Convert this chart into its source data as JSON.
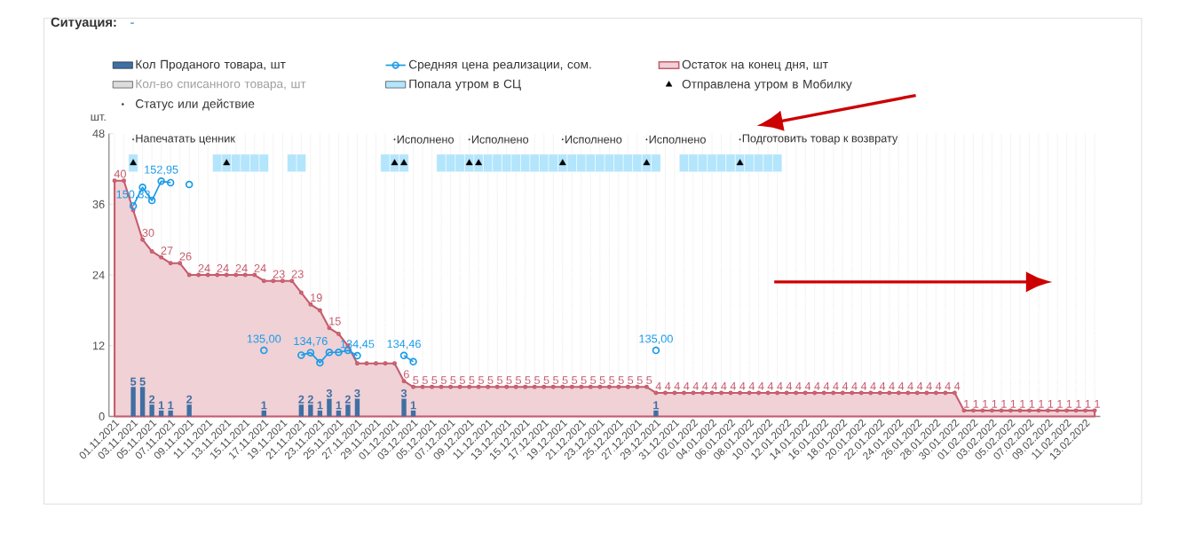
{
  "chart_data": {
    "type": "bar",
    "title": "Ситуация:",
    "subtitle": "-",
    "ylabel": "шт.",
    "categories": [
      "01.11.2021",
      null,
      "03.11.2021",
      null,
      "05.11.2021",
      null,
      "07.11.2021",
      null,
      "09.11.2021",
      null,
      "11.11.2021",
      null,
      "13.11.2021",
      null,
      "15.11.2021",
      null,
      "17.11.2021",
      null,
      "19.11.2021",
      null,
      "21.11.2021",
      null,
      "23.11.2021",
      null,
      "25.11.2021",
      null,
      "27.11.2021",
      null,
      "29.11.2021",
      null,
      "01.12.2021",
      null,
      "03.12.2021",
      null,
      "05.12.2021",
      null,
      "07.12.2021",
      null,
      "09.12.2021",
      null,
      "11.12.2021",
      null,
      "13.12.2021",
      null,
      "15.12.2021",
      null,
      "17.12.2021",
      null,
      "19.12.2021",
      null,
      "21.12.2021",
      null,
      "23.12.2021",
      null,
      "25.12.2021",
      null,
      "27.12.2021",
      null,
      "29.12.2021",
      null,
      "31.12.2021",
      null,
      "02.01.2022",
      null,
      "04.01.2022",
      null,
      "06.01.2022",
      null,
      "08.01.2022",
      null,
      "10.01.2022",
      null,
      "12.01.2022",
      null,
      "14.01.2022",
      null,
      "16.01.2022",
      null,
      "18.01.2022",
      null,
      "20.01.2022",
      null,
      "22.01.2022",
      null,
      "24.01.2022",
      null,
      "26.01.2022",
      null,
      "28.01.2022",
      null,
      "30.01.2022",
      null,
      "01.02.2022",
      null,
      "03.02.2022",
      null,
      "05.02.2022",
      null,
      "07.02.2022",
      null,
      "09.02.2022",
      null,
      "11.02.2022",
      null,
      "13.02.2022",
      null
    ],
    "ylim": [
      0,
      48
    ],
    "yticks": [
      0,
      12,
      24,
      36,
      48
    ],
    "y2lim": [
      128,
      158
    ],
    "grid": "x",
    "legend": "top left",
    "series": [
      {
        "name": "Кол Проданого товара, шт",
        "color": "#3f6fa3",
        "data_labels": true,
        "values": [
          null,
          null,
          5,
          5,
          2,
          1,
          1,
          null,
          2,
          null,
          null,
          null,
          null,
          null,
          null,
          null,
          1,
          null,
          null,
          null,
          2,
          2,
          1,
          3,
          1,
          2,
          3,
          null,
          null,
          null,
          null,
          3,
          1,
          null,
          null,
          null,
          null,
          null,
          null,
          null,
          null,
          null,
          null,
          null,
          null,
          null,
          null,
          null,
          null,
          null,
          null,
          null,
          null,
          null,
          null,
          null,
          null,
          null,
          1,
          null,
          null,
          null,
          null,
          null,
          null,
          null,
          null,
          null,
          null,
          null,
          null,
          null,
          null,
          null,
          null,
          null,
          null,
          null,
          null,
          null,
          null,
          null,
          null,
          null,
          null,
          null,
          null,
          null,
          null,
          null,
          null,
          null,
          null,
          null,
          null,
          null,
          null,
          null,
          null,
          null,
          null,
          null,
          null,
          null,
          null,
          null
        ]
      },
      {
        "name": "Средняя цена реализации, сом.",
        "type": "line",
        "axis": "y2",
        "marker": "circle",
        "color": "#1a9be8",
        "values": [
          null,
          null,
          150.33,
          152.3,
          150.9,
          152.95,
          152.8,
          null,
          152.6,
          null,
          null,
          null,
          null,
          null,
          null,
          null,
          135.0,
          null,
          null,
          null,
          134.5,
          134.76,
          133.7,
          134.8,
          134.8,
          135.0,
          134.45,
          null,
          null,
          null,
          null,
          134.46,
          133.8,
          null,
          null,
          null,
          null,
          null,
          null,
          null,
          null,
          null,
          null,
          null,
          null,
          null,
          null,
          null,
          null,
          null,
          null,
          null,
          null,
          null,
          null,
          null,
          null,
          null,
          135.0,
          null,
          null,
          null,
          null,
          null,
          null,
          null,
          null,
          null,
          null,
          null,
          null,
          null,
          null,
          null,
          null,
          null,
          null,
          null,
          null,
          null,
          null,
          null,
          null,
          null,
          null,
          null,
          null,
          null,
          null,
          null,
          null,
          null,
          null,
          null,
          null,
          null,
          null,
          null,
          null,
          null,
          null,
          null,
          null,
          null,
          null,
          null
        ],
        "value_labels": [
          null,
          null,
          "150,33",
          null,
          null,
          "152,95",
          null,
          null,
          null,
          null,
          null,
          null,
          null,
          null,
          null,
          null,
          "135,00",
          null,
          null,
          null,
          null,
          "134,76",
          null,
          null,
          null,
          null,
          "134,45",
          null,
          null,
          null,
          null,
          "134,46",
          null,
          null,
          null,
          null,
          null,
          null,
          null,
          null,
          null,
          null,
          null,
          null,
          null,
          null,
          null,
          null,
          null,
          null,
          null,
          null,
          null,
          null,
          null,
          null,
          null,
          null,
          "135,00",
          null,
          null,
          null,
          null,
          null,
          null,
          null,
          null,
          null,
          null,
          null,
          null,
          null,
          null,
          null,
          null,
          null,
          null,
          null,
          null,
          null,
          null,
          null,
          null,
          null,
          null,
          null,
          null,
          null,
          null,
          null,
          null,
          null,
          null,
          null,
          null,
          null,
          null,
          null,
          null,
          null,
          null,
          null,
          null,
          null,
          null,
          null
        ]
      },
      {
        "name": "Остаток на конец дня, шт",
        "type": "area",
        "marker": "circle",
        "color": "#c75b6c",
        "values": [
          40,
          40,
          35,
          30,
          28,
          27,
          26,
          26,
          24,
          24,
          24,
          24,
          24,
          24,
          24,
          24,
          23,
          23,
          23,
          23,
          21,
          19,
          18,
          15,
          14,
          12,
          9,
          9,
          9,
          9,
          9,
          6,
          5,
          5,
          5,
          5,
          5,
          5,
          5,
          5,
          5,
          5,
          5,
          5,
          5,
          5,
          5,
          5,
          5,
          5,
          5,
          5,
          5,
          5,
          5,
          5,
          5,
          5,
          4,
          4,
          4,
          4,
          4,
          4,
          4,
          4,
          4,
          4,
          4,
          4,
          4,
          4,
          4,
          4,
          4,
          4,
          4,
          4,
          4,
          4,
          4,
          4,
          4,
          4,
          4,
          4,
          4,
          4,
          4,
          4,
          4,
          1,
          1,
          1,
          1,
          1,
          1,
          1,
          1,
          1,
          1,
          1,
          1,
          1,
          1,
          1
        ],
        "value_labels": [
          "40",
          null,
          null,
          "30",
          null,
          "27",
          null,
          "26",
          null,
          "24",
          null,
          "24",
          null,
          "24",
          null,
          "24",
          null,
          "23",
          null,
          "23",
          null,
          "19",
          null,
          "15",
          null,
          null,
          null,
          null,
          null,
          null,
          null,
          "6",
          "5",
          "5",
          "5",
          "5",
          "5",
          "5",
          "5",
          "5",
          "5",
          "5",
          "5",
          "5",
          "5",
          "5",
          "5",
          "5",
          "5",
          "5",
          "5",
          "5",
          "5",
          "5",
          "5",
          "5",
          "5",
          "5",
          "4",
          "4",
          "4",
          "4",
          "4",
          "4",
          "4",
          "4",
          "4",
          "4",
          "4",
          "4",
          "4",
          "4",
          "4",
          "4",
          "4",
          "4",
          "4",
          "4",
          "4",
          "4",
          "4",
          "4",
          "4",
          "4",
          "4",
          "4",
          "4",
          "4",
          "4",
          "4",
          "4",
          "1",
          "1",
          "1",
          "1",
          "1",
          "1",
          "1",
          "1",
          "1",
          "1",
          "1",
          "1",
          "1",
          "1",
          "1"
        ]
      },
      {
        "name": "Кол-во списанного товара, шт",
        "color": "#dddddd",
        "values": [
          null,
          null,
          null,
          null,
          null,
          null,
          null,
          null,
          null,
          null,
          null,
          null,
          null,
          null,
          null,
          null,
          null,
          null,
          null,
          null,
          null,
          null,
          null,
          null,
          null,
          null,
          null,
          null,
          null,
          null,
          null,
          null,
          null,
          null,
          null,
          null,
          null,
          null,
          null,
          null,
          null,
          null,
          null,
          null,
          null,
          null,
          null,
          null,
          null,
          null,
          null,
          null,
          null,
          null,
          null,
          null,
          null,
          null,
          null,
          null,
          null,
          null,
          null,
          null,
          null,
          null,
          null,
          null,
          null,
          null,
          null,
          null,
          null,
          null,
          null,
          null,
          null,
          null,
          null,
          null,
          null,
          null,
          null,
          null,
          null,
          null,
          null,
          null,
          null,
          null,
          null,
          null,
          null,
          null,
          null,
          null,
          null,
          null,
          null,
          null,
          null,
          null,
          null,
          null,
          null,
          null
        ]
      },
      {
        "name": "Попала утром в СЦ",
        "type": "bar",
        "color": "#b3e5fc",
        "values": [
          null,
          null,
          3,
          null,
          null,
          null,
          null,
          null,
          null,
          null,
          null,
          3,
          3,
          3,
          3,
          3,
          3,
          null,
          null,
          3,
          3,
          null,
          null,
          null,
          null,
          null,
          null,
          null,
          null,
          3,
          3,
          3,
          null,
          null,
          null,
          3,
          3,
          3,
          3,
          3,
          3,
          3,
          3,
          3,
          3,
          3,
          3,
          3,
          3,
          3,
          3,
          3,
          3,
          3,
          3,
          3,
          3,
          3,
          3,
          null,
          null,
          3,
          3,
          3,
          3,
          3,
          3,
          3,
          3,
          3,
          3,
          3,
          null,
          null,
          null,
          null,
          null,
          null,
          null,
          null,
          null,
          null,
          null,
          null,
          null,
          null,
          null,
          null,
          null,
          null,
          null,
          null,
          null,
          null,
          null,
          null,
          null,
          null,
          null,
          null,
          null,
          null,
          null,
          null,
          null,
          null
        ],
        "base": [
          null,
          null,
          41.5,
          null,
          null,
          null,
          null,
          null,
          null,
          null,
          null,
          41.5,
          41.5,
          41.5,
          41.5,
          41.5,
          41.5,
          null,
          null,
          41.5,
          41.5,
          null,
          null,
          null,
          null,
          null,
          null,
          null,
          null,
          41.5,
          41.5,
          41.5,
          null,
          null,
          null,
          41.5,
          41.5,
          41.5,
          41.5,
          41.5,
          41.5,
          41.5,
          41.5,
          41.5,
          41.5,
          41.5,
          41.5,
          41.5,
          41.5,
          41.5,
          41.5,
          41.5,
          41.5,
          41.5,
          41.5,
          41.5,
          41.5,
          41.5,
          41.5,
          null,
          null,
          41.5,
          41.5,
          41.5,
          41.5,
          41.5,
          41.5,
          41.5,
          41.5,
          41.5,
          41.5,
          41.5,
          null,
          null,
          null,
          null,
          null,
          null,
          null,
          null,
          null,
          null,
          null,
          null,
          null,
          null,
          null,
          null,
          null,
          null,
          null,
          null,
          null,
          null,
          null,
          null,
          null,
          null,
          null,
          null,
          null,
          null,
          null,
          null,
          null,
          null
        ]
      },
      {
        "name": "Отправлена утром в Мобилку",
        "type": "scatter",
        "marker": "triangle",
        "color": "#000000",
        "values": [
          null,
          null,
          43,
          null,
          null,
          null,
          null,
          null,
          null,
          null,
          null,
          null,
          43,
          null,
          null,
          null,
          null,
          null,
          null,
          null,
          null,
          null,
          null,
          null,
          null,
          null,
          null,
          null,
          null,
          null,
          43,
          43,
          null,
          null,
          null,
          null,
          null,
          null,
          43,
          43,
          null,
          null,
          null,
          null,
          null,
          null,
          null,
          null,
          43,
          null,
          null,
          null,
          null,
          null,
          null,
          null,
          null,
          43,
          null,
          null,
          null,
          null,
          null,
          null,
          null,
          null,
          null,
          43,
          null,
          null,
          null,
          null,
          null,
          null,
          null,
          null,
          null,
          null,
          null,
          null,
          null,
          null,
          null,
          null,
          null,
          null,
          null,
          null,
          null,
          null,
          null,
          null,
          null,
          null,
          null,
          null,
          null,
          null,
          null,
          null,
          null,
          null,
          null,
          null,
          null,
          null
        ]
      },
      {
        "name": "Статус или действие",
        "type": "scatter",
        "marker": "circle",
        "color": "#333333",
        "values": [
          null,
          null,
          47,
          null,
          null,
          null,
          null,
          null,
          null,
          null,
          null,
          null,
          null,
          null,
          null,
          null,
          null,
          null,
          null,
          null,
          null,
          null,
          null,
          null,
          null,
          null,
          null,
          null,
          null,
          null,
          47,
          null,
          null,
          null,
          null,
          null,
          null,
          null,
          47,
          null,
          null,
          null,
          null,
          null,
          null,
          null,
          null,
          null,
          47,
          null,
          null,
          null,
          null,
          null,
          null,
          null,
          null,
          47,
          null,
          null,
          null,
          null,
          null,
          null,
          null,
          null,
          null,
          47,
          null,
          null,
          null,
          null,
          null,
          null,
          null,
          null,
          null,
          null,
          null,
          null,
          null,
          null,
          null,
          null,
          null,
          null,
          null,
          null,
          null,
          null,
          null,
          null,
          null,
          null,
          null,
          null,
          null,
          null,
          null,
          null,
          null,
          null,
          null,
          null,
          null,
          null
        ],
        "value_labels": [
          null,
          null,
          "Напечатать ценник",
          null,
          null,
          null,
          null,
          null,
          null,
          null,
          null,
          null,
          null,
          null,
          null,
          null,
          null,
          null,
          null,
          null,
          null,
          null,
          null,
          null,
          null,
          null,
          null,
          null,
          null,
          null,
          "Исполнено",
          null,
          null,
          null,
          null,
          null,
          null,
          null,
          "Исполнено",
          null,
          null,
          null,
          null,
          null,
          null,
          null,
          null,
          null,
          "Исполнено",
          null,
          null,
          null,
          null,
          null,
          null,
          null,
          null,
          "Исполнено",
          null,
          null,
          null,
          null,
          null,
          null,
          null,
          null,
          null,
          "Подготовить товар к возврату",
          null,
          null,
          null,
          null,
          null,
          null,
          null,
          null,
          null,
          null,
          null,
          null,
          null,
          null,
          null,
          null,
          null,
          null,
          null,
          null,
          null,
          null,
          null,
          null,
          null,
          null,
          null,
          null,
          null,
          null,
          null,
          null,
          null,
          null,
          null,
          null,
          null,
          null
        ]
      }
    ]
  }
}
